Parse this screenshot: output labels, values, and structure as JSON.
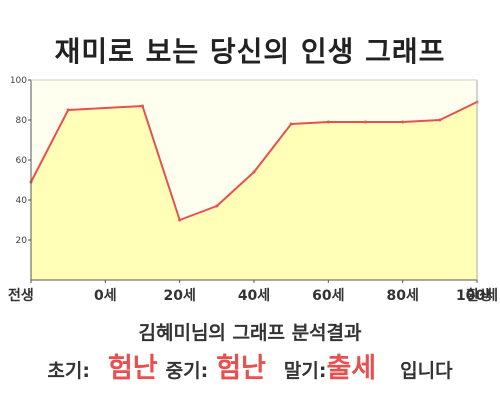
{
  "title": "재미로 보는 당신의 인생 그래프",
  "analysis_title": "김혜미님의 그래프 분석결과",
  "result": {
    "early_label": "초기:",
    "early_value": "험난",
    "mid_label": "중기:",
    "mid_value": "험난",
    "late_label": "말기:",
    "late_value": "출세",
    "ending": "입니다"
  },
  "colors": {
    "line": "#e8504f",
    "area": "#ffffb8",
    "plot_bg": "#fffff0",
    "accent": "#e8504f"
  },
  "chart_data": {
    "type": "area",
    "title": "재미로 보는 당신의 인생 그래프",
    "categories": [
      "전생",
      "0세",
      "20세",
      "40세",
      "60세",
      "80세",
      "100세",
      "환생"
    ],
    "x": [
      -10,
      0,
      20,
      30,
      40,
      50,
      60,
      70,
      80,
      90,
      100,
      110
    ],
    "y": [
      49,
      85,
      87,
      30,
      37,
      54,
      78,
      79,
      79,
      79,
      80,
      89
    ],
    "yticks": [
      20,
      40,
      60,
      80,
      100
    ],
    "ylim": [
      0,
      100
    ],
    "xlim": [
      -10,
      110
    ],
    "grid": false,
    "legend": "none"
  }
}
